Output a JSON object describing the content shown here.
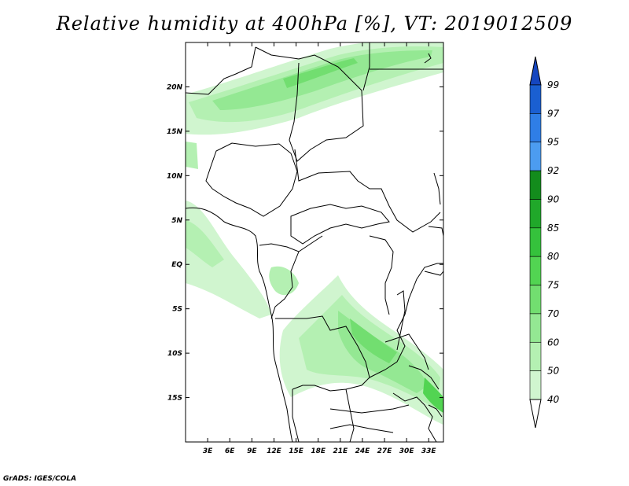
{
  "title": "Relative humidity at 400hPa [%], VT: 2019012509",
  "credit": "GrADS: IGES/COLA",
  "map": {
    "lon_range": [
      0,
      35
    ],
    "lat_range": [
      -20,
      25
    ],
    "x_ticks": [
      "3E",
      "6E",
      "9E",
      "12E",
      "15E",
      "18E",
      "21E",
      "24E",
      "27E",
      "30E",
      "33E"
    ],
    "y_ticks": [
      "20N",
      "15N",
      "10N",
      "5N",
      "EQ",
      "5S",
      "10S",
      "15S"
    ]
  },
  "colorbar": {
    "levels": [
      "99",
      "97",
      "95",
      "92",
      "90",
      "85",
      "80",
      "75",
      "70",
      "60",
      "50",
      "40"
    ],
    "colors": [
      "#1a5fd1",
      "#2f7ee6",
      "#4c9cf0",
      "#138c1c",
      "#20a82a",
      "#35c23c",
      "#52d452",
      "#72de70",
      "#94e893",
      "#b4f0b2",
      "#d0f5cf",
      "#e9fbe8"
    ],
    "top_cap_color": "#1546c0",
    "bottom_cap_color": "#ffffff"
  }
}
